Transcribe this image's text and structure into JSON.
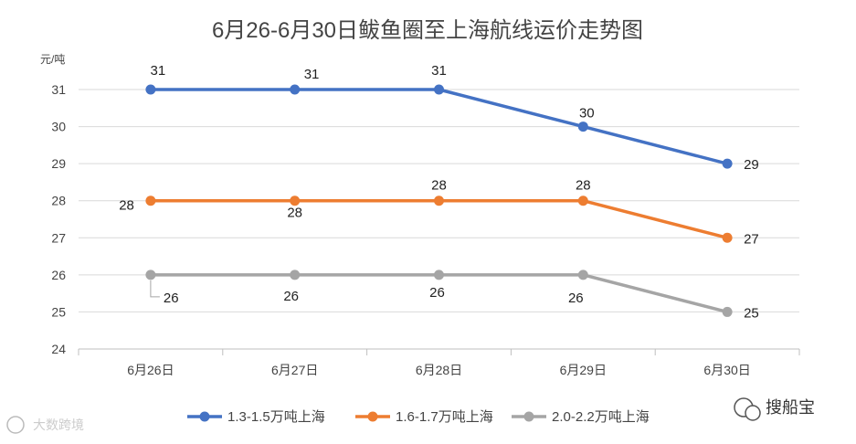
{
  "chart_data": {
    "type": "line",
    "title": "6月26-6月30日鲅鱼圈至上海航线运价走势图",
    "y_unit": "元/吨",
    "categories": [
      "6月26日",
      "6月27日",
      "6月28日",
      "6月29日",
      "6月30日"
    ],
    "ylim": [
      24,
      31
    ],
    "yticks": [
      24,
      25,
      26,
      27,
      28,
      29,
      30,
      31
    ],
    "grid": true,
    "legend_position": "bottom",
    "series": [
      {
        "name": "1.3-1.5万吨上海",
        "color": "#4472C4",
        "values": [
          31,
          31,
          31,
          30,
          29
        ]
      },
      {
        "name": "1.6-1.7万吨上海",
        "color": "#ED7D31",
        "values": [
          28,
          28,
          28,
          28,
          27
        ]
      },
      {
        "name": "2.0-2.2万吨上海",
        "color": "#A5A5A5",
        "values": [
          26,
          26,
          26,
          26,
          25
        ]
      }
    ]
  },
  "watermarks": {
    "left": "大数跨境",
    "right": "搜船宝"
  }
}
